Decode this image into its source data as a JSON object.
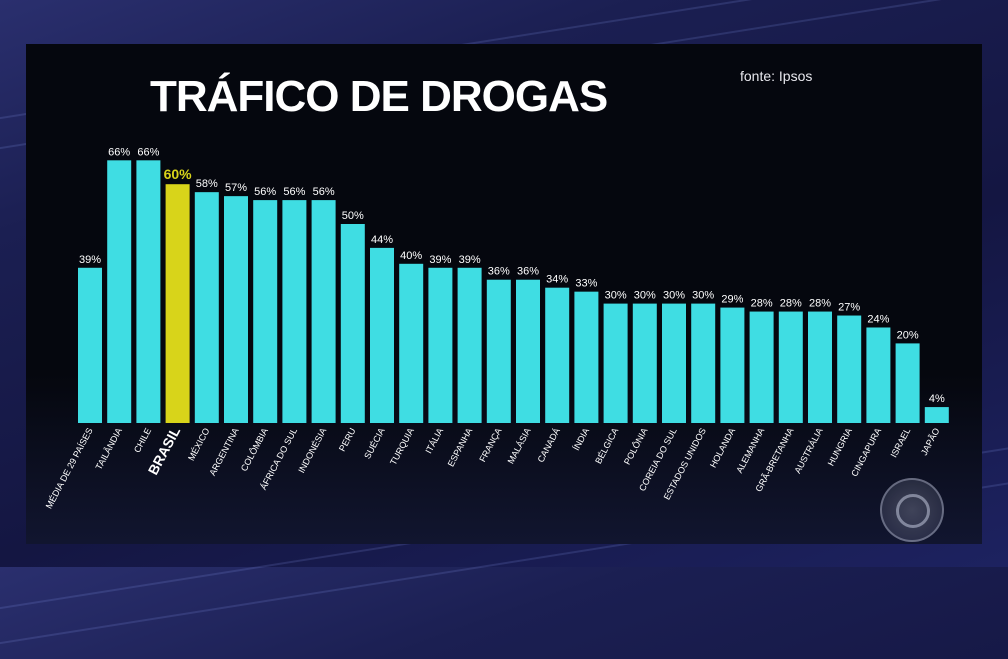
{
  "title": "TRÁFICO DE DROGAS",
  "source": "fonte: Ipsos",
  "colors": {
    "bar": "#3fdde3",
    "highlight": "#d8d41a",
    "text": "#ffffff",
    "background": "#05070e"
  },
  "logo": {
    "icon": "globo-logo-icon"
  },
  "chart_data": {
    "type": "bar",
    "title": "TRÁFICO DE DROGAS",
    "xlabel": "",
    "ylabel": "",
    "ylim": [
      0,
      70
    ],
    "highlight_index": 3,
    "categories": [
      "MÉDIA DE 29 PAÍSES",
      "TAILÂNDIA",
      "CHILE",
      "BRASIL",
      "MÉXICO",
      "ARGENTINA",
      "COLÔMBIA",
      "ÁFRICA DO SUL",
      "INDONÉSIA",
      "PERU",
      "SUÉCIA",
      "TURQUIA",
      "ITÁLIA",
      "ESPANHA",
      "FRANÇA",
      "MALÁSIA",
      "CANADÁ",
      "ÍNDIA",
      "BÉLGICA",
      "POLÔNIA",
      "COREIA DO SUL",
      "ESTADOS UNIDOS",
      "HOLANDA",
      "ALEMANHA",
      "GRÃ-BRETANHA",
      "AUSTRÁLIA",
      "HUNGRIA",
      "CINGAPURA",
      "ISRAEL",
      "JAPÃO"
    ],
    "values": [
      39,
      66,
      66,
      60,
      58,
      57,
      56,
      56,
      56,
      50,
      44,
      40,
      39,
      39,
      36,
      36,
      34,
      33,
      30,
      30,
      30,
      30,
      29,
      28,
      28,
      28,
      27,
      24,
      20,
      4
    ],
    "labels": [
      "39%",
      "66%",
      "66%",
      "60%",
      "58%",
      "57%",
      "56%",
      "56%",
      "56%",
      "50%",
      "44%",
      "40%",
      "39%",
      "39%",
      "36%",
      "36%",
      "34%",
      "33%",
      "30%",
      "30%",
      "30%",
      "30%",
      "29%",
      "28%",
      "28%",
      "28%",
      "27%",
      "24%",
      "20%",
      "4%"
    ],
    "grid": false,
    "legend": "none"
  }
}
